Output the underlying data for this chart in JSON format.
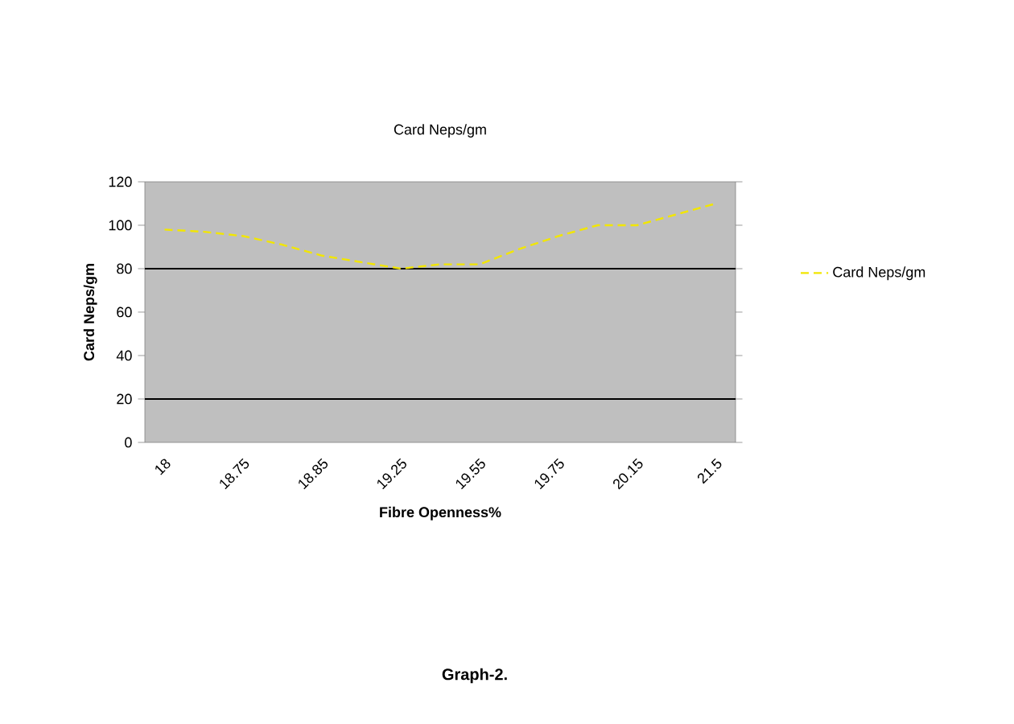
{
  "chart_data": {
    "type": "line",
    "title": "Card Neps/gm",
    "xlabel": "Fibre Openness%",
    "ylabel": "Card Neps/gm",
    "categories": [
      "18",
      null,
      "18.75",
      null,
      "18.85",
      null,
      "19.25",
      null,
      "19.55",
      null,
      "19.75",
      null,
      "20.15",
      null,
      "21.5"
    ],
    "series": [
      {
        "name": "Card Neps/gm",
        "color": "#f2e600",
        "values": [
          98,
          97,
          95,
          91,
          86,
          83,
          80,
          82,
          82,
          89,
          95,
          100,
          100,
          105,
          110
        ]
      }
    ],
    "ylim": [
      0,
      120
    ],
    "yticks": [
      0,
      20,
      40,
      60,
      80,
      100,
      120
    ],
    "ref_lines": [
      {
        "axis": "y",
        "value": 20,
        "color": "#000000"
      },
      {
        "axis": "y",
        "value": 80,
        "color": "#000000"
      }
    ],
    "line_style": "dashed",
    "marker": "none",
    "grid": false,
    "legend": "right",
    "annotations": [
      "Graph-2."
    ]
  }
}
